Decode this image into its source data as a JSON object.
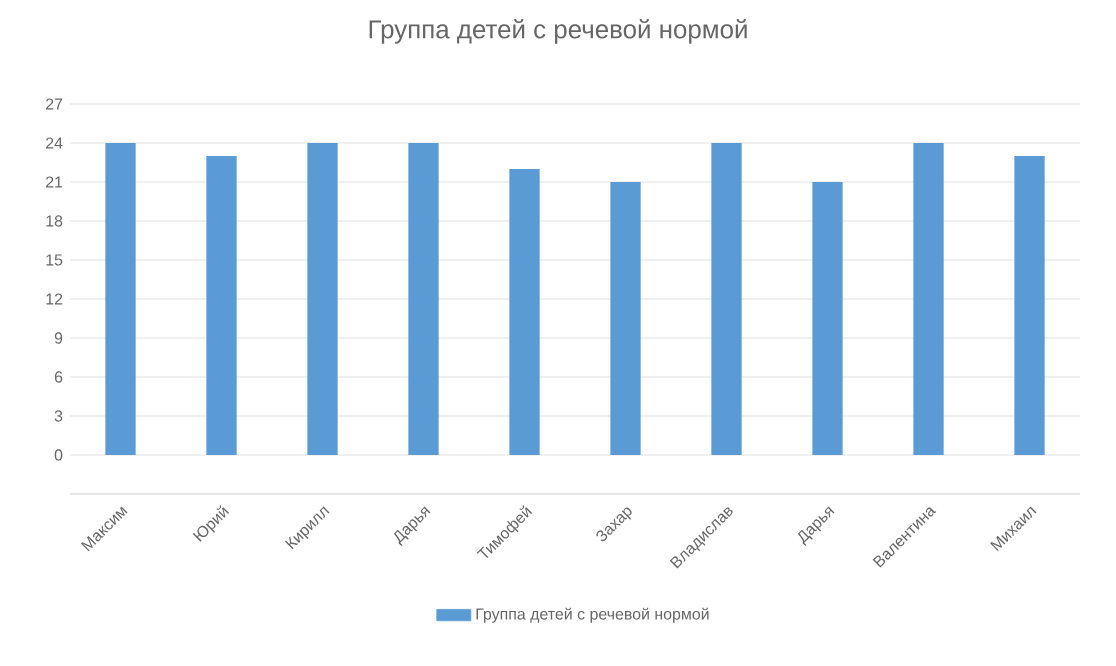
{
  "chart_data": {
    "type": "bar",
    "title": "Группа детей с речевой нормой",
    "categories": [
      "Максим",
      "Юрий",
      "Кирилл",
      "Дарья",
      "Тимофей",
      "Захар",
      "Владислав",
      "Дарья",
      "Валентина",
      "Михаил"
    ],
    "series": [
      {
        "name": "Группа детей с речевой нормой",
        "color": "#5b9bd5",
        "values": [
          24,
          23,
          24,
          24,
          22,
          21,
          24,
          21,
          24,
          23
        ]
      }
    ],
    "ylim": [
      -3,
      27
    ],
    "yticks": [
      0,
      3,
      6,
      9,
      12,
      15,
      18,
      21,
      24,
      27
    ],
    "grid": "y",
    "legend": "bottom"
  }
}
